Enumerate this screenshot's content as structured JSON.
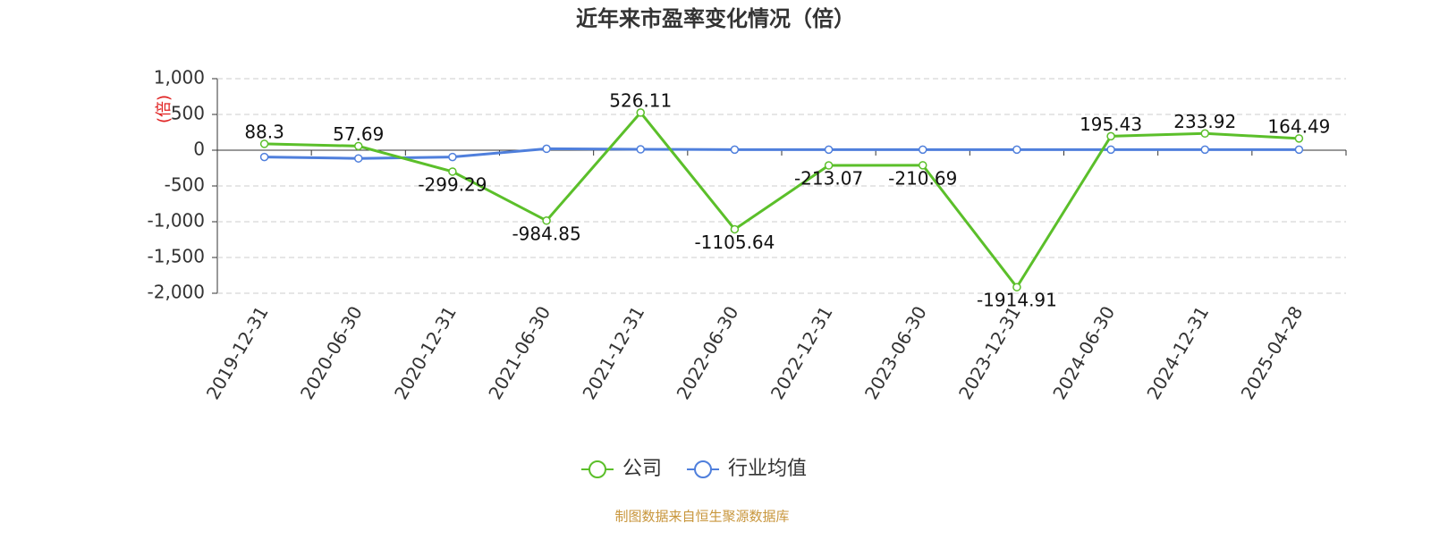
{
  "chart_data": {
    "type": "line",
    "title": "近年来市盈率变化情况（倍）",
    "y_label": "(倍)",
    "categories": [
      "2019-12-31",
      "2020-06-30",
      "2020-12-31",
      "2021-06-30",
      "2021-12-31",
      "2022-06-30",
      "2022-12-31",
      "2023-06-30",
      "2023-12-31",
      "2024-06-30",
      "2024-12-31",
      "2025-04-28"
    ],
    "series": [
      {
        "name": "公司",
        "color": "#5bbf2a",
        "values": [
          88.3,
          57.69,
          -299.29,
          -984.85,
          526.11,
          -1105.64,
          -213.07,
          -210.69,
          -1914.91,
          195.43,
          233.92,
          164.49
        ]
      },
      {
        "name": "行业均值",
        "color": "#4f7fdc",
        "values": [
          -95,
          -115,
          -95,
          20,
          12,
          8,
          8,
          8,
          8,
          8,
          8,
          8
        ]
      }
    ],
    "ylim": [
      -2000,
      1000
    ],
    "yticks": [
      {
        "value": -2000,
        "label": "-2,000"
      },
      {
        "value": -1500,
        "label": "-1,500"
      },
      {
        "value": -1000,
        "label": "-1,000"
      },
      -500,
      0,
      500,
      {
        "value": 1000,
        "label": "1,000"
      }
    ],
    "grid": true,
    "legend": "bottom",
    "source": "制图数据来自恒生聚源数据库"
  }
}
